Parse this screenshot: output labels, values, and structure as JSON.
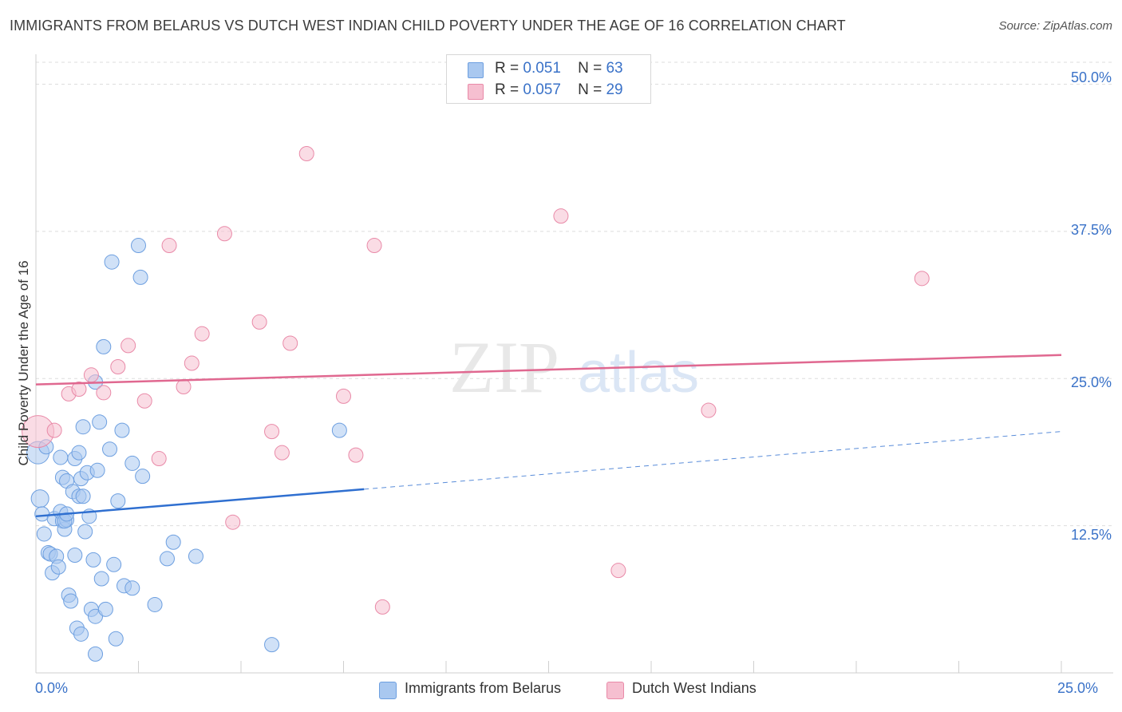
{
  "title": "IMMIGRANTS FROM BELARUS VS DUTCH WEST INDIAN CHILD POVERTY UNDER THE AGE OF 16 CORRELATION CHART",
  "source": "Source: ZipAtlas.com",
  "watermark": {
    "zip": "ZIP",
    "atlas": "atlas"
  },
  "legend": {
    "rows": [
      {
        "r_label": "R =",
        "r_value": "0.051",
        "n_label": "N =",
        "n_value": "63"
      },
      {
        "r_label": "R =",
        "r_value": "0.057",
        "n_label": "N =",
        "n_value": "29"
      }
    ]
  },
  "colors": {
    "blue_fill": "#a9c8f0",
    "blue_stroke": "#6d9fe0",
    "blue_line": "#2f6fd0",
    "pink_fill": "#f6bfd0",
    "pink_stroke": "#e98aa8",
    "pink_line": "#e06890",
    "tick_text": "#3a72c8",
    "grid": "#dddddd"
  },
  "chart_data": {
    "type": "scatter",
    "title": "IMMIGRANTS FROM BELARUS VS DUTCH WEST INDIAN CHILD POVERTY UNDER THE AGE OF 16 CORRELATION CHART",
    "xlabel": "",
    "ylabel": "Child Poverty Under the Age of 16",
    "xlim": [
      0,
      25
    ],
    "ylim": [
      0,
      52.2
    ],
    "x_tick_labels": [
      "0.0%",
      "25.0%"
    ],
    "y_ticks": [
      12.5,
      25.0,
      37.5,
      50.0
    ],
    "y_tick_labels": [
      "12.5%",
      "25.0%",
      "37.5%",
      "50.0%"
    ],
    "grid": true,
    "legend_position": "top-center",
    "series": [
      {
        "name": "Immigrants from Belarus",
        "color": "blue",
        "R": 0.051,
        "N": 63,
        "trend": {
          "x0": 0,
          "y0": 13.3,
          "x1": 8.0,
          "y1": 15.6,
          "dashed_to_x": 25,
          "dashed_to_y": 20.5
        },
        "points": [
          [
            0.05,
            18.7,
            14
          ],
          [
            0.1,
            14.8,
            11
          ],
          [
            0.15,
            13.5,
            9
          ],
          [
            0.2,
            11.8,
            9
          ],
          [
            0.25,
            19.2,
            9
          ],
          [
            0.3,
            10.2,
            9
          ],
          [
            0.35,
            10.1,
            9
          ],
          [
            0.4,
            8.5,
            9
          ],
          [
            0.45,
            13.1,
            9
          ],
          [
            0.5,
            9.9,
            9
          ],
          [
            0.55,
            9.0,
            9
          ],
          [
            0.6,
            13.7,
            9
          ],
          [
            0.65,
            12.9,
            9
          ],
          [
            0.7,
            12.2,
            9
          ],
          [
            0.75,
            13.0,
            9
          ],
          [
            0.6,
            18.3,
            9
          ],
          [
            0.65,
            16.6,
            9
          ],
          [
            0.7,
            12.9,
            9
          ],
          [
            0.75,
            13.5,
            9
          ],
          [
            0.75,
            16.3,
            9
          ],
          [
            0.8,
            6.6,
            9
          ],
          [
            0.85,
            6.1,
            9
          ],
          [
            0.9,
            15.4,
            9
          ],
          [
            0.95,
            10.0,
            9
          ],
          [
            0.95,
            18.2,
            9
          ],
          [
            1.0,
            3.8,
            9
          ],
          [
            1.05,
            15.0,
            9
          ],
          [
            1.05,
            18.7,
            9
          ],
          [
            1.1,
            16.5,
            9
          ],
          [
            1.1,
            3.3,
            9
          ],
          [
            1.15,
            20.9,
            9
          ],
          [
            1.2,
            12.0,
            9
          ],
          [
            1.25,
            17.0,
            9
          ],
          [
            1.3,
            13.3,
            9
          ],
          [
            1.35,
            5.4,
            9
          ],
          [
            1.4,
            9.6,
            9
          ],
          [
            1.45,
            4.8,
            9
          ],
          [
            1.5,
            17.2,
            9
          ],
          [
            1.55,
            21.3,
            9
          ],
          [
            1.6,
            8.0,
            9
          ],
          [
            1.65,
            27.7,
            9
          ],
          [
            1.7,
            5.4,
            9
          ],
          [
            1.8,
            19.0,
            9
          ],
          [
            1.85,
            34.9,
            9
          ],
          [
            1.9,
            9.2,
            9
          ],
          [
            1.95,
            2.9,
            9
          ],
          [
            2.0,
            14.6,
            9
          ],
          [
            2.1,
            20.6,
            9
          ],
          [
            2.15,
            7.4,
            9
          ],
          [
            2.35,
            17.8,
            9
          ],
          [
            2.35,
            7.2,
            9
          ],
          [
            2.5,
            36.3,
            9
          ],
          [
            2.55,
            33.6,
            9
          ],
          [
            2.6,
            16.7,
            9
          ],
          [
            2.9,
            5.8,
            9
          ],
          [
            3.2,
            9.7,
            9
          ],
          [
            3.35,
            11.1,
            9
          ],
          [
            3.9,
            9.9,
            9
          ],
          [
            5.75,
            2.4,
            9
          ],
          [
            1.45,
            24.7,
            9
          ],
          [
            7.4,
            20.6,
            9
          ],
          [
            1.45,
            1.6,
            9
          ],
          [
            1.15,
            15.0,
            9
          ]
        ]
      },
      {
        "name": "Dutch West Indians",
        "color": "pink",
        "R": 0.057,
        "N": 29,
        "trend": {
          "x0": 0,
          "y0": 24.5,
          "x1": 25,
          "y1": 27.0
        },
        "points": [
          [
            0.05,
            20.5,
            20
          ],
          [
            0.45,
            20.6,
            9
          ],
          [
            0.8,
            23.7,
            9
          ],
          [
            1.05,
            24.1,
            9
          ],
          [
            1.35,
            25.3,
            9
          ],
          [
            1.65,
            23.8,
            9
          ],
          [
            2.0,
            26.0,
            9
          ],
          [
            2.25,
            27.8,
            9
          ],
          [
            2.65,
            23.1,
            9
          ],
          [
            3.0,
            18.2,
            9
          ],
          [
            3.25,
            36.3,
            9
          ],
          [
            3.6,
            24.3,
            9
          ],
          [
            3.8,
            26.3,
            9
          ],
          [
            4.05,
            28.8,
            9
          ],
          [
            4.6,
            37.3,
            9
          ],
          [
            4.8,
            12.8,
            9
          ],
          [
            5.45,
            29.8,
            9
          ],
          [
            5.75,
            20.5,
            9
          ],
          [
            6.0,
            18.7,
            9
          ],
          [
            6.2,
            28.0,
            9
          ],
          [
            6.6,
            44.1,
            9
          ],
          [
            7.5,
            23.5,
            9
          ],
          [
            7.8,
            18.5,
            9
          ],
          [
            8.25,
            36.3,
            9
          ],
          [
            8.45,
            5.6,
            9
          ],
          [
            12.8,
            38.8,
            9
          ],
          [
            14.2,
            8.7,
            9
          ],
          [
            16.4,
            22.3,
            9
          ],
          [
            21.6,
            33.5,
            9
          ]
        ]
      }
    ]
  },
  "bottom_legend": [
    "Immigrants from Belarus",
    "Dutch West Indians"
  ]
}
